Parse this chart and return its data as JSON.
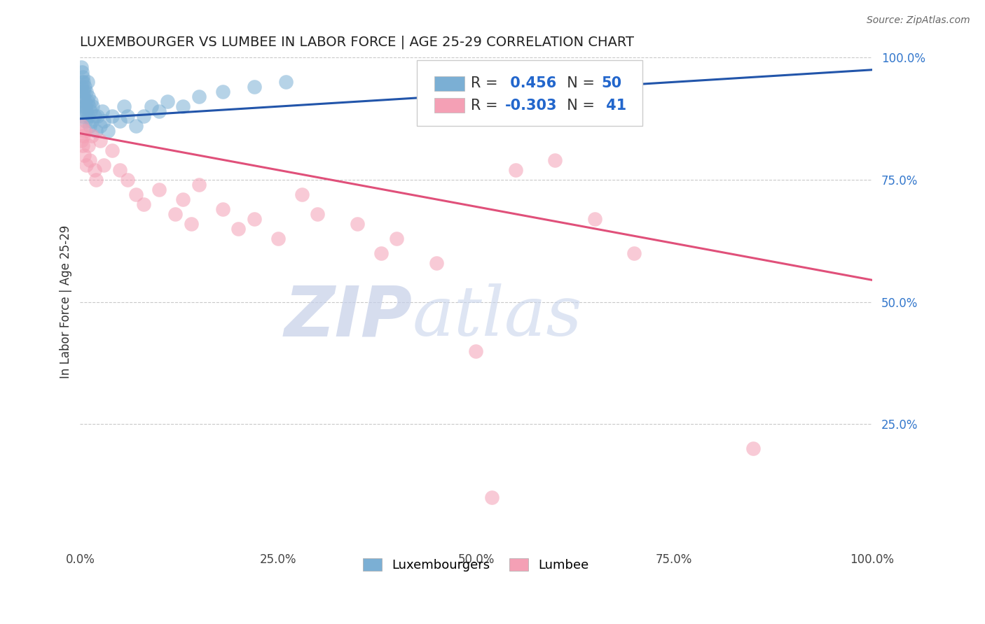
{
  "title": "LUXEMBOURGER VS LUMBEE IN LABOR FORCE | AGE 25-29 CORRELATION CHART",
  "source_text": "Source: ZipAtlas.com",
  "ylabel": "In Labor Force | Age 25-29",
  "xlim": [
    0,
    1
  ],
  "ylim": [
    0,
    1
  ],
  "xticks": [
    0.0,
    0.25,
    0.5,
    0.75,
    1.0
  ],
  "xtick_labels": [
    "0.0%",
    "25.0%",
    "50.0%",
    "75.0%",
    "100.0%"
  ],
  "yticks_right": [
    0.25,
    0.5,
    0.75,
    1.0
  ],
  "ytick_labels_right": [
    "25.0%",
    "50.0%",
    "75.0%",
    "100.0%"
  ],
  "blue_color": "#7bafd4",
  "pink_color": "#f4a0b5",
  "trendline_blue": "#2255aa",
  "trendline_pink": "#e0507a",
  "R_blue": 0.456,
  "N_blue": 50,
  "R_pink": -0.303,
  "N_pink": 41,
  "watermark_zip": "ZIP",
  "watermark_atlas": "atlas",
  "legend_labels": [
    "Luxembourgers",
    "Lumbee"
  ],
  "blue_x": [
    0.001,
    0.001,
    0.002,
    0.002,
    0.002,
    0.003,
    0.003,
    0.003,
    0.003,
    0.004,
    0.004,
    0.005,
    0.005,
    0.006,
    0.006,
    0.007,
    0.007,
    0.008,
    0.008,
    0.009,
    0.009,
    0.01,
    0.01,
    0.011,
    0.012,
    0.013,
    0.014,
    0.015,
    0.016,
    0.018,
    0.02,
    0.022,
    0.025,
    0.028,
    0.03,
    0.035,
    0.04,
    0.05,
    0.055,
    0.06,
    0.07,
    0.08,
    0.09,
    0.1,
    0.11,
    0.13,
    0.15,
    0.18,
    0.22,
    0.26
  ],
  "blue_y": [
    0.94,
    0.98,
    0.95,
    0.91,
    0.97,
    0.93,
    0.96,
    0.9,
    0.88,
    0.92,
    0.95,
    0.89,
    0.93,
    0.91,
    0.94,
    0.9,
    0.87,
    0.93,
    0.89,
    0.91,
    0.95,
    0.88,
    0.92,
    0.9,
    0.86,
    0.89,
    0.91,
    0.87,
    0.9,
    0.88,
    0.85,
    0.88,
    0.86,
    0.89,
    0.87,
    0.85,
    0.88,
    0.87,
    0.9,
    0.88,
    0.86,
    0.88,
    0.9,
    0.89,
    0.91,
    0.9,
    0.92,
    0.93,
    0.94,
    0.95
  ],
  "pink_x": [
    0.001,
    0.002,
    0.003,
    0.004,
    0.005,
    0.006,
    0.008,
    0.01,
    0.012,
    0.015,
    0.018,
    0.02,
    0.025,
    0.03,
    0.04,
    0.05,
    0.06,
    0.07,
    0.08,
    0.1,
    0.12,
    0.13,
    0.14,
    0.15,
    0.18,
    0.2,
    0.22,
    0.25,
    0.28,
    0.3,
    0.35,
    0.38,
    0.4,
    0.45,
    0.5,
    0.52,
    0.55,
    0.6,
    0.65,
    0.7,
    0.85
  ],
  "pink_y": [
    0.83,
    0.86,
    0.82,
    0.84,
    0.8,
    0.85,
    0.78,
    0.82,
    0.79,
    0.84,
    0.77,
    0.75,
    0.83,
    0.78,
    0.81,
    0.77,
    0.75,
    0.72,
    0.7,
    0.73,
    0.68,
    0.71,
    0.66,
    0.74,
    0.69,
    0.65,
    0.67,
    0.63,
    0.72,
    0.68,
    0.66,
    0.6,
    0.63,
    0.58,
    0.4,
    0.1,
    0.77,
    0.79,
    0.67,
    0.6,
    0.2
  ],
  "pink_trend_x0": 0.0,
  "pink_trend_y0": 0.845,
  "pink_trend_x1": 1.0,
  "pink_trend_y1": 0.545,
  "blue_trend_x0": 0.0,
  "blue_trend_y0": 0.875,
  "blue_trend_x1": 1.0,
  "blue_trend_y1": 0.975
}
